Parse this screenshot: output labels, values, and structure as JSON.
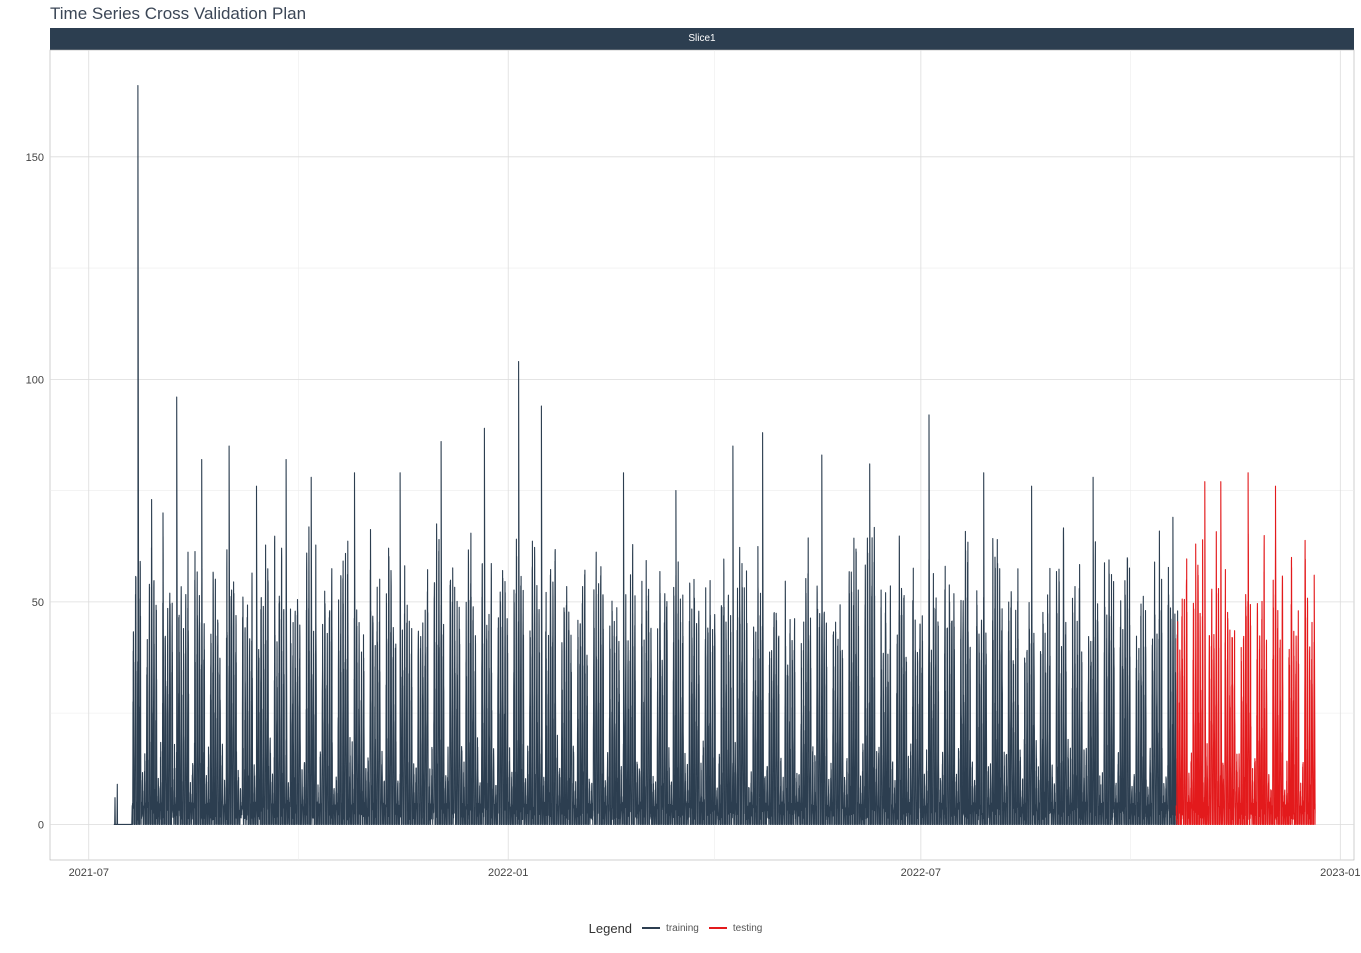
{
  "chart_data": {
    "type": "line",
    "title": "Time Series Cross Validation Plan",
    "facet_label": "Slice1",
    "xlabel": "",
    "ylabel": "",
    "x_axis_type": "date",
    "xlim": [
      "2021-06-14",
      "2023-01-07"
    ],
    "ylim": [
      -8,
      174
    ],
    "x_ticks": [
      "2021-07-01",
      "2022-01-01",
      "2022-07-01",
      "2023-01-01"
    ],
    "x_tick_labels": [
      "2021-07",
      "2022-01",
      "2022-07",
      "2023-01"
    ],
    "y_ticks": [
      0,
      50,
      100,
      150
    ],
    "y_tick_labels": [
      "0",
      "50",
      "100",
      "150"
    ],
    "grid": true,
    "legend_position": "bottom",
    "legend_title": "Legend",
    "series_start": "2021-07-12",
    "split_date": "2022-10-21",
    "series_end": "2022-12-20",
    "series": [
      {
        "name": "training",
        "color": "#2c3e50",
        "points": [
          {
            "x": "2021-07-12",
            "y": 6
          },
          {
            "x": "2021-07-13",
            "y": 9
          },
          {
            "x": "2021-07-22",
            "y": 166
          },
          {
            "x": "2021-07-28",
            "y": 73
          },
          {
            "x": "2021-08-02",
            "y": 70
          },
          {
            "x": "2021-08-08",
            "y": 96
          },
          {
            "x": "2021-08-19",
            "y": 82
          },
          {
            "x": "2021-08-31",
            "y": 85
          },
          {
            "x": "2021-09-12",
            "y": 76
          },
          {
            "x": "2021-09-25",
            "y": 82
          },
          {
            "x": "2021-10-06",
            "y": 78
          },
          {
            "x": "2021-10-25",
            "y": 79
          },
          {
            "x": "2021-11-14",
            "y": 79
          },
          {
            "x": "2021-12-02",
            "y": 86
          },
          {
            "x": "2021-12-21",
            "y": 89
          },
          {
            "x": "2022-01-05",
            "y": 104
          },
          {
            "x": "2022-01-15",
            "y": 94
          },
          {
            "x": "2022-02-20",
            "y": 79
          },
          {
            "x": "2022-03-15",
            "y": 75
          },
          {
            "x": "2022-04-09",
            "y": 85
          },
          {
            "x": "2022-04-22",
            "y": 88
          },
          {
            "x": "2022-05-18",
            "y": 83
          },
          {
            "x": "2022-06-08",
            "y": 81
          },
          {
            "x": "2022-07-04",
            "y": 92
          },
          {
            "x": "2022-07-28",
            "y": 79
          },
          {
            "x": "2022-08-18",
            "y": 76
          },
          {
            "x": "2022-09-14",
            "y": 78
          },
          {
            "x": "2022-10-19",
            "y": 69
          }
        ]
      },
      {
        "name": "testing",
        "color": "#e31a1c",
        "points": [
          {
            "x": "2022-10-29",
            "y": 63
          },
          {
            "x": "2022-11-02",
            "y": 77
          },
          {
            "x": "2022-11-09",
            "y": 77
          },
          {
            "x": "2022-11-21",
            "y": 79
          },
          {
            "x": "2022-12-03",
            "y": 76
          },
          {
            "x": "2022-12-10",
            "y": 60
          },
          {
            "x": "2022-12-20",
            "y": 56
          }
        ]
      }
    ]
  }
}
